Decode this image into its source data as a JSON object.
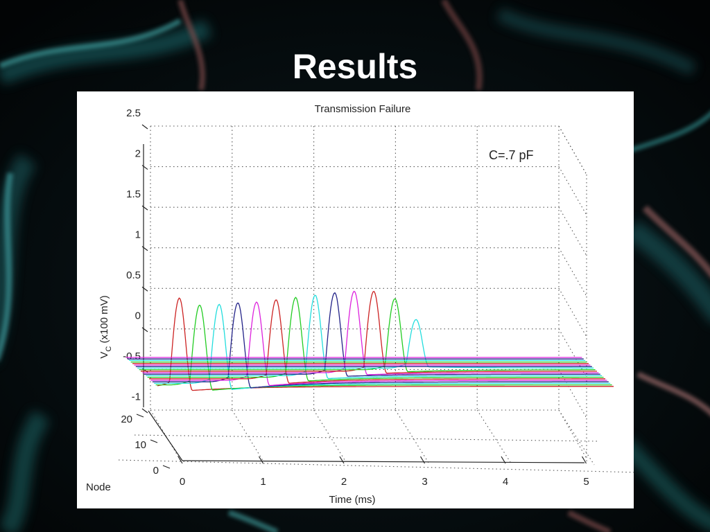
{
  "slide": {
    "title": "Results"
  },
  "colors": {
    "background": "#05080a",
    "panel": "#ffffff",
    "grid": "#333333",
    "series_palette": [
      "#cc2222",
      "#22cc22",
      "#22dddd",
      "#222288",
      "#dd22dd"
    ]
  },
  "chart_data": {
    "type": "line",
    "view": "3d",
    "title": "Transmission Failure",
    "annotation": "C=.7 pF",
    "xlabel": "Time (ms)",
    "ylabel_main": "V",
    "ylabel_sub": "C",
    "ylabel_rest": " (x100 mV)",
    "zlabel": "Node",
    "x_ticks": [
      "0",
      "1",
      "2",
      "3",
      "4",
      "5"
    ],
    "y_ticks": [
      "20",
      "10",
      "0"
    ],
    "z_ticks": [
      "2.5",
      "2",
      "1.5",
      "1",
      "0.5",
      "0",
      "-0.5",
      "-1"
    ],
    "xlim": [
      0,
      5
    ],
    "ylim": [
      0,
      20
    ],
    "zlim": [
      -1,
      2.5
    ],
    "grid": true,
    "resting_potential": -0.65,
    "series": [
      {
        "node": 1,
        "spike_time_ms": 0.15,
        "peak": 1.53,
        "trough": -0.75
      },
      {
        "node": 2,
        "spike_time_ms": 0.42,
        "peak": 1.32,
        "trough": -0.78
      },
      {
        "node": 3,
        "spike_time_ms": 0.68,
        "peak": 1.3,
        "trough": -0.8
      },
      {
        "node": 4,
        "spike_time_ms": 0.93,
        "peak": 1.3,
        "trough": -0.8
      },
      {
        "node": 5,
        "spike_time_ms": 1.18,
        "peak": 1.28,
        "trough": -0.78
      },
      {
        "node": 6,
        "spike_time_ms": 1.44,
        "peak": 1.3,
        "trough": -0.76
      },
      {
        "node": 7,
        "spike_time_ms": 1.7,
        "peak": 1.32,
        "trough": -0.74
      },
      {
        "node": 8,
        "spike_time_ms": 1.96,
        "peak": 1.34,
        "trough": -0.72
      },
      {
        "node": 9,
        "spike_time_ms": 2.22,
        "peak": 1.36,
        "trough": -0.7
      },
      {
        "node": 10,
        "spike_time_ms": 2.48,
        "peak": 1.36,
        "trough": -0.7
      },
      {
        "node": 11,
        "spike_time_ms": 2.74,
        "peak": 1.32,
        "trough": -0.7
      },
      {
        "node": 12,
        "spike_time_ms": 3.02,
        "peak": 1.1,
        "trough": -0.7
      },
      {
        "node": 13,
        "spike_time_ms": 3.3,
        "peak": 0.55,
        "trough": -0.62
      }
    ],
    "flat_nodes": [
      14,
      15,
      16,
      17,
      18,
      19,
      20
    ]
  }
}
